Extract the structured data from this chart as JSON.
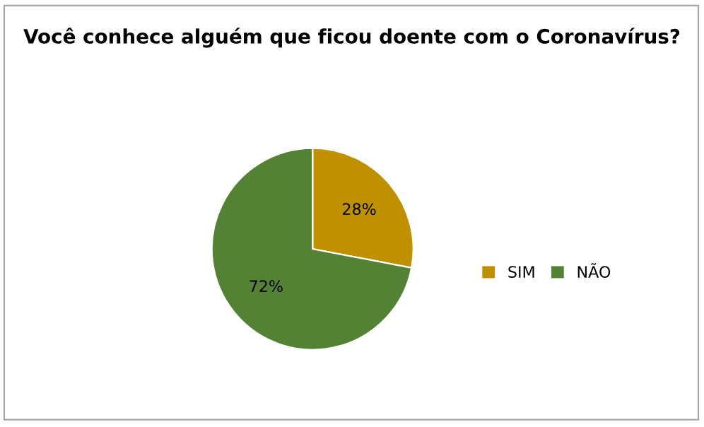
{
  "chart_data": {
    "type": "pie",
    "title": "Você conhece alguém que ficou doente com o Coronavírus?",
    "categories": [
      "SIM",
      "NÃO"
    ],
    "values": [
      28,
      72
    ],
    "colors": [
      "#bf9000",
      "#548235"
    ],
    "value_labels": [
      "28%",
      "72%"
    ],
    "legend": "right"
  }
}
